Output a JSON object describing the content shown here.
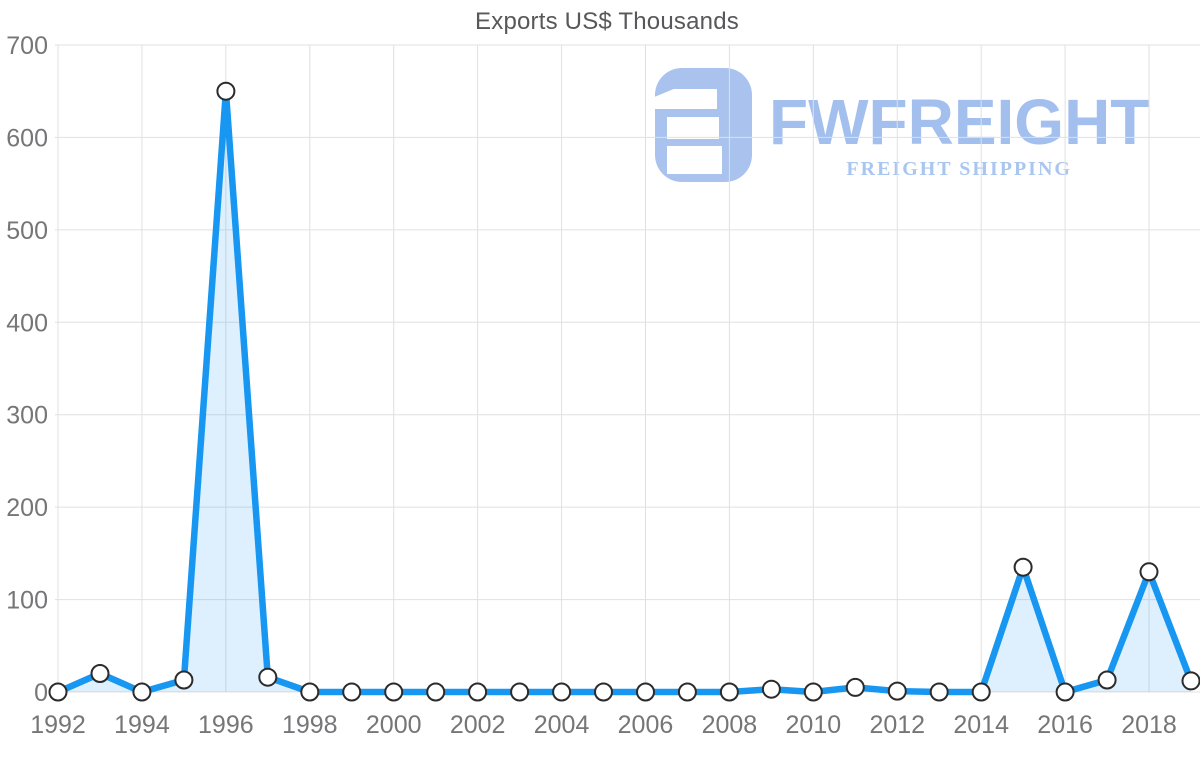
{
  "page": {
    "background": "#ffffff"
  },
  "watermark": {
    "brand": "FWFREIGHT",
    "tagline": "FREIGHT SHIPPING",
    "icon": "fwfreight-logo",
    "color_icon": "#aac3ee",
    "color_brand": "#a3bfed",
    "color_tagline": "#a9c6f1"
  },
  "chart_data": {
    "type": "area",
    "title": "Exports US$ Thousands",
    "x": [
      1992,
      1993,
      1994,
      1995,
      1996,
      1997,
      1998,
      1999,
      2000,
      2001,
      2002,
      2003,
      2004,
      2005,
      2006,
      2007,
      2008,
      2009,
      2010,
      2011,
      2012,
      2013,
      2014,
      2015,
      2016,
      2017,
      2018,
      2019
    ],
    "values": [
      0,
      20,
      0,
      13,
      650,
      16,
      0,
      0,
      0,
      0,
      0,
      0,
      0,
      0,
      0,
      0,
      0,
      3,
      0,
      5,
      1,
      0,
      0,
      135,
      0,
      13,
      130,
      12
    ],
    "series_name": "Exports US$ Thousands",
    "xlabel": "",
    "ylabel": "",
    "ylim": [
      0,
      700
    ],
    "yticks": [
      0,
      100,
      200,
      300,
      400,
      500,
      600,
      700
    ],
    "xticks": [
      1992,
      1994,
      1996,
      1998,
      2000,
      2002,
      2004,
      2006,
      2008,
      2010,
      2012,
      2014,
      2016,
      2018
    ],
    "grid": true,
    "legend": "none",
    "marker": "circle",
    "colors": {
      "line": "#1797f1",
      "fill": "#1797f1",
      "fill_opacity": 0.14,
      "marker_fill": "#ffffff",
      "marker_stroke": "#2b2b2b",
      "grid": "#e0e0e0",
      "tick_label": "#767678",
      "title": "#58585a"
    }
  }
}
